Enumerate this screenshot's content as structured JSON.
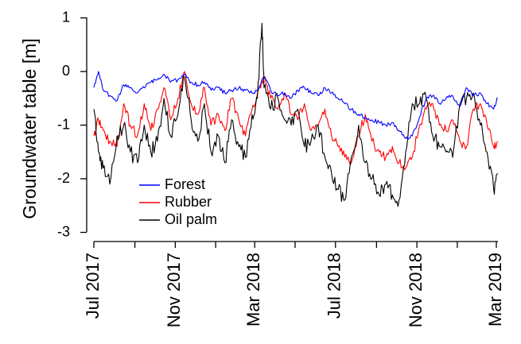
{
  "chart_data": {
    "type": "line",
    "title": "",
    "xlabel": "",
    "ylabel": "Groundwater table [m]",
    "ylim": [
      -3.2,
      1.1
    ],
    "xlim": [
      "2017-07-01",
      "2019-03-10"
    ],
    "yticks": [
      1,
      0,
      -1,
      -2,
      -3
    ],
    "yticklabels": [
      "1",
      "0",
      "-1",
      "-2",
      "-3"
    ],
    "xticks": [
      "2017-07-01",
      "2017-09-01",
      "2017-11-01",
      "2018-01-01",
      "2018-03-01",
      "2018-05-01",
      "2018-07-01",
      "2018-09-01",
      "2018-11-01",
      "2019-01-01",
      "2019-03-01"
    ],
    "xticklabels": [
      "Jul 2017",
      "",
      "Nov 2017",
      "",
      "Mar 2018",
      "",
      "Jul 2018",
      "",
      "Nov 2018",
      "",
      "Mar 2019"
    ],
    "legend_position": "bottom-left",
    "grid": false,
    "series": [
      {
        "name": "Forest",
        "color": "#0000ff",
        "x": [
          "2017-07-01",
          "2017-07-08",
          "2017-07-15",
          "2017-07-25",
          "2017-08-05",
          "2017-08-15",
          "2017-08-25",
          "2017-09-05",
          "2017-09-15",
          "2017-09-25",
          "2017-10-05",
          "2017-10-15",
          "2017-10-25",
          "2017-11-05",
          "2017-11-15",
          "2017-11-25",
          "2017-12-05",
          "2017-12-15",
          "2017-12-25",
          "2018-01-05",
          "2018-01-15",
          "2018-01-25",
          "2018-02-05",
          "2018-02-15",
          "2018-02-25",
          "2018-03-05",
          "2018-03-15",
          "2018-03-25",
          "2018-04-05",
          "2018-04-15",
          "2018-04-25",
          "2018-05-05",
          "2018-05-15",
          "2018-05-25",
          "2018-06-05",
          "2018-06-15",
          "2018-06-25",
          "2018-07-05",
          "2018-07-15",
          "2018-07-25",
          "2018-08-05",
          "2018-08-15",
          "2018-08-25",
          "2018-09-05",
          "2018-09-15",
          "2018-09-25",
          "2018-10-05",
          "2018-10-15",
          "2018-10-25",
          "2018-11-05",
          "2018-11-15",
          "2018-11-25",
          "2018-12-05",
          "2018-12-15",
          "2018-12-25",
          "2019-01-05",
          "2019-01-15",
          "2019-01-25",
          "2019-02-05",
          "2019-02-15",
          "2019-02-25",
          "2019-03-03"
        ],
        "y": [
          -0.3,
          0.0,
          -0.35,
          -0.45,
          -0.55,
          -0.25,
          -0.3,
          -0.4,
          -0.3,
          -0.2,
          -0.15,
          -0.05,
          -0.2,
          -0.15,
          -0.05,
          -0.2,
          -0.25,
          -0.2,
          -0.35,
          -0.3,
          -0.4,
          -0.35,
          -0.3,
          -0.35,
          -0.4,
          -0.35,
          -0.1,
          -0.35,
          -0.45,
          -0.4,
          -0.5,
          -0.35,
          -0.3,
          -0.4,
          -0.45,
          -0.3,
          -0.4,
          -0.5,
          -0.6,
          -0.7,
          -0.8,
          -0.85,
          -0.9,
          -0.95,
          -1.0,
          -0.95,
          -1.1,
          -1.25,
          -1.2,
          -0.85,
          -0.5,
          -0.45,
          -0.6,
          -0.5,
          -0.45,
          -0.65,
          -0.3,
          -0.45,
          -0.4,
          -0.6,
          -0.7,
          -0.5
        ]
      },
      {
        "name": "Rubber",
        "color": "#ff0000",
        "x": [
          "2017-07-01",
          "2017-07-08",
          "2017-07-15",
          "2017-07-25",
          "2017-08-05",
          "2017-08-15",
          "2017-08-25",
          "2017-09-05",
          "2017-09-15",
          "2017-09-25",
          "2017-10-05",
          "2017-10-15",
          "2017-10-25",
          "2017-11-05",
          "2017-11-15",
          "2017-11-25",
          "2017-12-05",
          "2017-12-15",
          "2017-12-25",
          "2018-01-05",
          "2018-01-15",
          "2018-01-25",
          "2018-02-05",
          "2018-02-15",
          "2018-02-25",
          "2018-03-05",
          "2018-03-15",
          "2018-03-25",
          "2018-04-05",
          "2018-04-15",
          "2018-04-25",
          "2018-05-05",
          "2018-05-15",
          "2018-05-25",
          "2018-06-05",
          "2018-06-15",
          "2018-06-25",
          "2018-07-05",
          "2018-07-15",
          "2018-07-25",
          "2018-08-05",
          "2018-08-15",
          "2018-08-25",
          "2018-09-05",
          "2018-09-15",
          "2018-09-25",
          "2018-10-05",
          "2018-10-15",
          "2018-10-25",
          "2018-11-05",
          "2018-11-15",
          "2018-11-25",
          "2018-12-05",
          "2018-12-15",
          "2018-12-25",
          "2019-01-05",
          "2019-01-15",
          "2019-01-25",
          "2019-02-05",
          "2019-02-15",
          "2019-02-25",
          "2019-03-03"
        ],
        "y": [
          -1.2,
          -0.9,
          -1.1,
          -1.3,
          -1.4,
          -0.6,
          -1.0,
          -1.2,
          -0.6,
          -1.1,
          -0.7,
          -0.3,
          -0.9,
          -0.5,
          0.0,
          -0.6,
          -0.8,
          -0.3,
          -1.0,
          -0.8,
          -1.1,
          -0.5,
          -0.9,
          -1.2,
          -0.7,
          -0.4,
          -0.1,
          -0.5,
          -0.7,
          -0.4,
          -0.8,
          -0.9,
          -0.6,
          -1.1,
          -1.0,
          -0.7,
          -1.2,
          -1.4,
          -1.6,
          -1.7,
          -1.2,
          -0.8,
          -1.3,
          -1.5,
          -1.6,
          -1.4,
          -1.7,
          -1.8,
          -1.6,
          -1.0,
          -0.7,
          -0.6,
          -1.0,
          -1.1,
          -0.9,
          -1.3,
          -1.4,
          -0.7,
          -0.6,
          -1.0,
          -1.4,
          -1.3
        ]
      },
      {
        "name": "Oil palm",
        "color": "#000000",
        "x": [
          "2017-07-01",
          "2017-07-08",
          "2017-07-15",
          "2017-07-25",
          "2017-08-05",
          "2017-08-15",
          "2017-08-25",
          "2017-09-05",
          "2017-09-15",
          "2017-09-25",
          "2017-10-05",
          "2017-10-15",
          "2017-10-25",
          "2017-11-05",
          "2017-11-15",
          "2017-11-25",
          "2017-12-05",
          "2017-12-15",
          "2017-12-25",
          "2018-01-05",
          "2018-01-15",
          "2018-01-25",
          "2018-02-05",
          "2018-02-15",
          "2018-02-25",
          "2018-03-05",
          "2018-03-12",
          "2018-03-15",
          "2018-03-25",
          "2018-04-05",
          "2018-04-15",
          "2018-04-25",
          "2018-05-05",
          "2018-05-15",
          "2018-05-25",
          "2018-06-05",
          "2018-06-15",
          "2018-06-25",
          "2018-07-05",
          "2018-07-15",
          "2018-07-25",
          "2018-08-05",
          "2018-08-15",
          "2018-08-25",
          "2018-09-05",
          "2018-09-15",
          "2018-09-25",
          "2018-10-05",
          "2018-10-15",
          "2018-10-25",
          "2018-11-05",
          "2018-11-15",
          "2018-11-25",
          "2018-12-05",
          "2018-12-15",
          "2018-12-25",
          "2019-01-05",
          "2019-01-15",
          "2019-01-25",
          "2019-02-05",
          "2019-02-15",
          "2019-02-25",
          "2019-03-03"
        ],
        "y": [
          -0.7,
          -1.5,
          -1.8,
          -2.1,
          -1.2,
          -1.0,
          -1.5,
          -1.7,
          -1.0,
          -1.5,
          -1.3,
          -0.5,
          -1.2,
          -0.8,
          -0.1,
          -0.9,
          -1.3,
          -0.6,
          -1.5,
          -1.2,
          -1.7,
          -0.9,
          -1.4,
          -1.6,
          -0.8,
          -0.5,
          0.9,
          -0.3,
          -0.7,
          -0.5,
          -0.9,
          -1.0,
          -0.7,
          -1.4,
          -1.3,
          -1.0,
          -1.6,
          -1.9,
          -2.2,
          -2.4,
          -1.6,
          -1.0,
          -1.7,
          -2.0,
          -2.3,
          -2.1,
          -2.3,
          -2.4,
          -1.5,
          -0.6,
          -0.6,
          -0.5,
          -1.2,
          -1.4,
          -1.5,
          -1.6,
          -0.6,
          -0.5,
          -0.4,
          -1.0,
          -1.5,
          -2.2,
          -1.9
        ]
      }
    ]
  }
}
